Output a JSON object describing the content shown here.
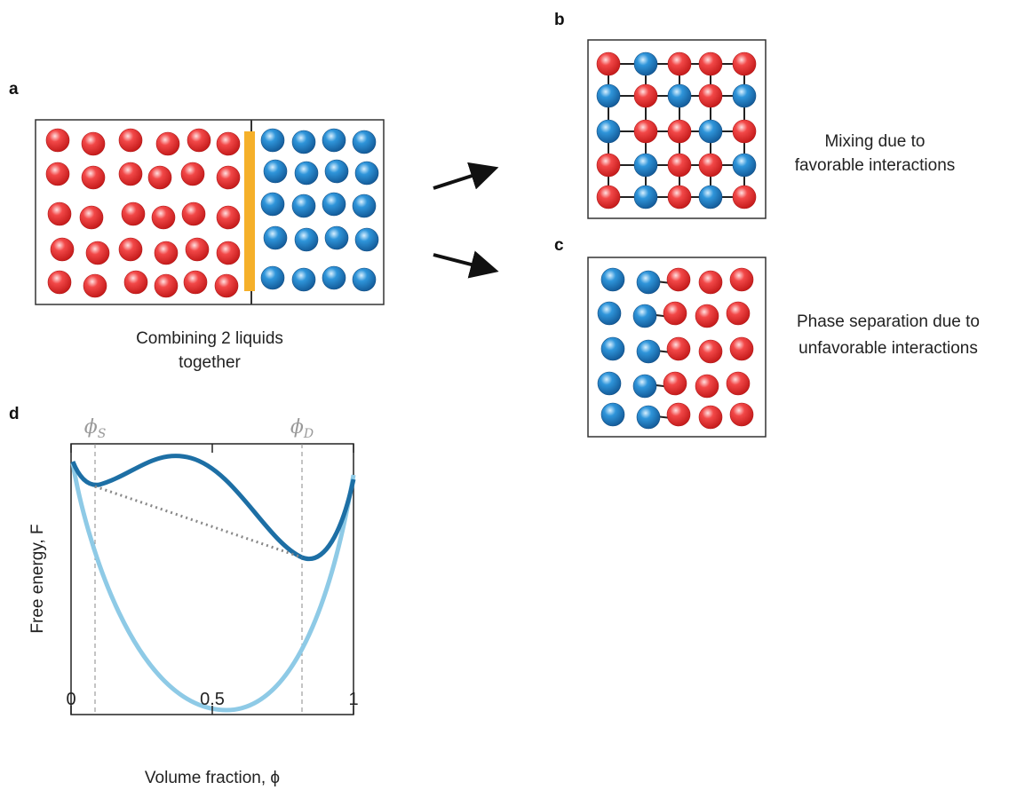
{
  "panel_a": {
    "label": "a",
    "caption": [
      "Combining 2 liquids",
      "together"
    ]
  },
  "panel_b": {
    "label": "b",
    "caption": [
      "Mixing due to",
      "favorable interactions"
    ]
  },
  "panel_c": {
    "label": "c",
    "caption": [
      "Phase separation due to",
      "unfavorable interactions"
    ]
  },
  "panel_d": {
    "label": "d",
    "xlabel": "Volume fraction, ϕ",
    "ylabel": "Free energy, F",
    "phi_s": {
      "symbol": "ϕ",
      "subscript": "S"
    },
    "phi_d": {
      "symbol": "ϕ",
      "subscript": "D"
    },
    "xlim": [
      0,
      1
    ],
    "xticks": [
      0,
      0.5,
      1
    ]
  }
}
